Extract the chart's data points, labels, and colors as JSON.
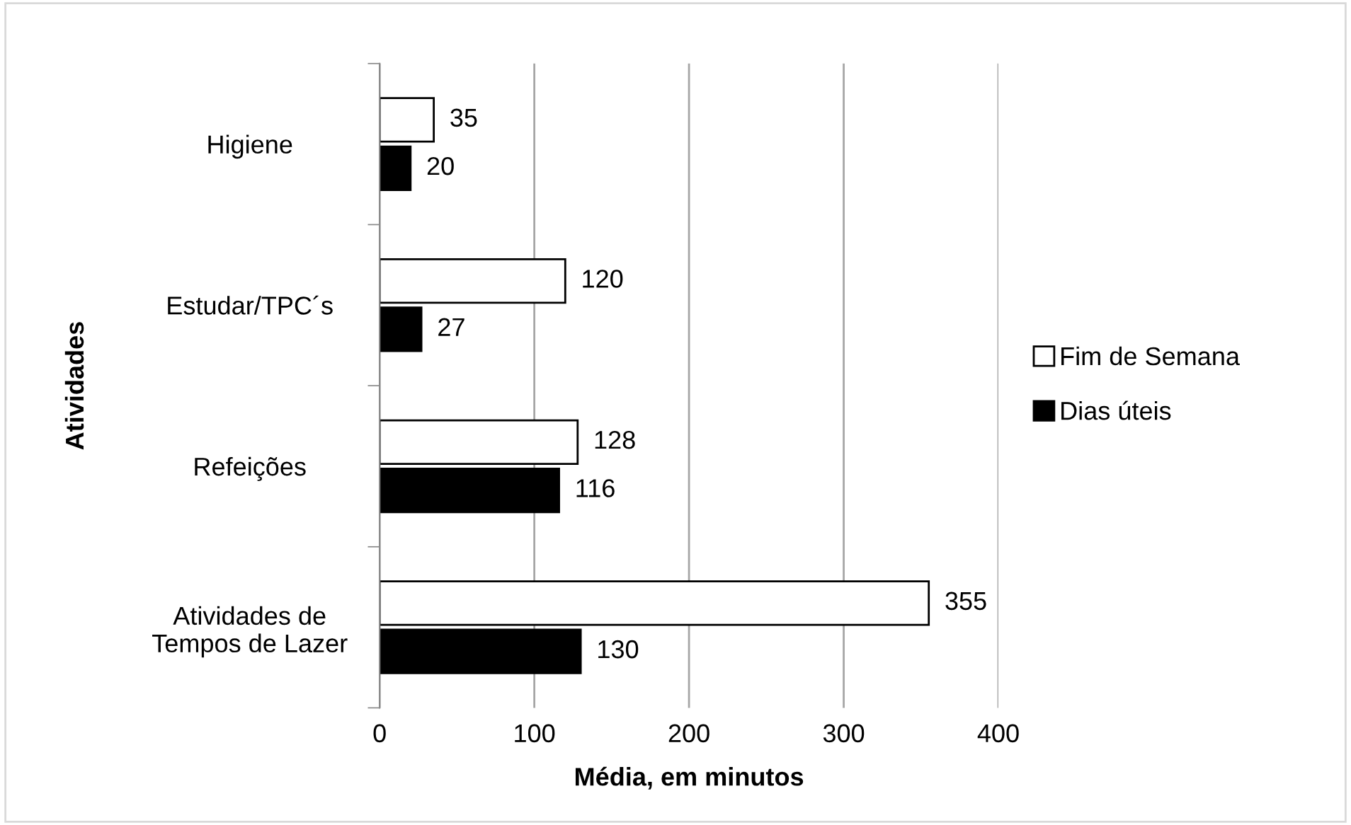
{
  "chart_data": {
    "type": "bar",
    "orientation": "horizontal",
    "xlabel": "Média, em minutos",
    "ylabel": "Atividades",
    "categories": [
      "Higiene",
      "Estudar/TPC´s",
      "Refeições",
      "Atividades de\nTempos de Lazer"
    ],
    "series": [
      {
        "name": "Fim de Semana",
        "color": "#ffffff",
        "values": [
          35,
          120,
          128,
          355
        ]
      },
      {
        "name": "Dias úteis",
        "color": "#000000",
        "values": [
          20,
          27,
          116,
          130
        ]
      }
    ],
    "xlim": [
      0,
      400
    ],
    "xticks": [
      0,
      100,
      200,
      300,
      400
    ],
    "grid": "x",
    "legend": "right",
    "data_labels": true
  }
}
